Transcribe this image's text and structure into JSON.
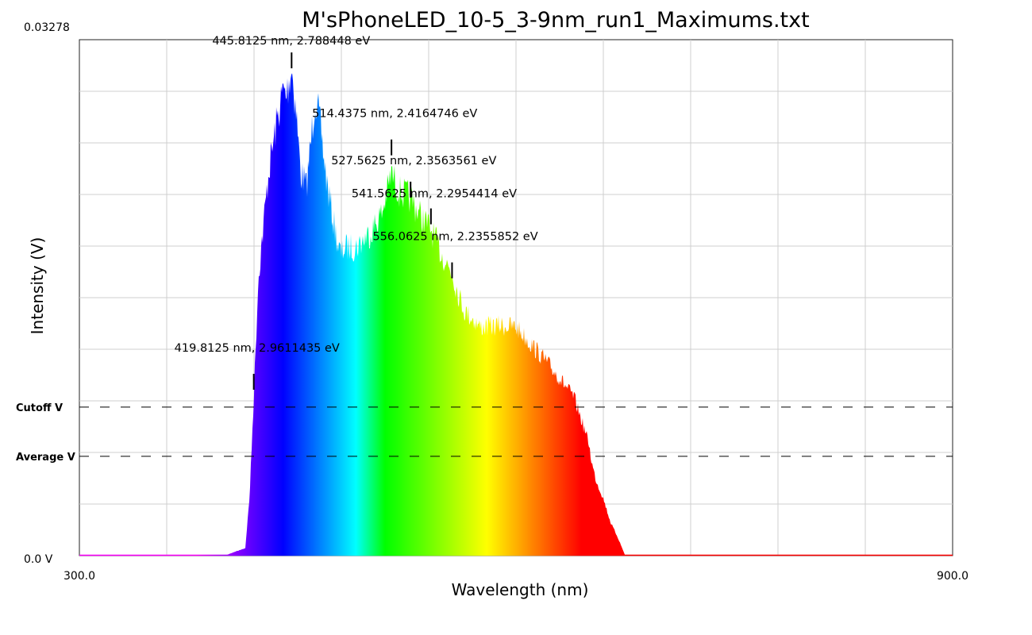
{
  "chart_data": {
    "type": "area",
    "title": "M'sPhoneLED_10-5_3-9nm_run1_Maximums.txt",
    "xlabel": "Wavelength (nm)",
    "ylabel": "Intensity (V)",
    "xlim": [
      300.0,
      900.0
    ],
    "ylim": [
      0.0,
      0.03278
    ],
    "x_tick_labels": {
      "min": "300.0",
      "max": "900.0"
    },
    "y_tick_labels": {
      "min": "0.0 V",
      "max": "0.03278"
    },
    "grid": true,
    "x_grid_step": 60,
    "y_grid_divisions": 9,
    "fill": "visible-spectrum gradient by wavelength",
    "series": [
      {
        "x": [
          300,
          400,
          414,
          417,
          419.8,
          423,
          430,
          435,
          440,
          442,
          445.8,
          449,
          452,
          456,
          459,
          462,
          465,
          470,
          474,
          478,
          480,
          482,
          490,
          500,
          508,
          514.4,
          520,
          527.6,
          535,
          541.6,
          548,
          556.1,
          560,
          565,
          570,
          575,
          590,
          600,
          620,
          630,
          640,
          645,
          650,
          652,
          655,
          660,
          665,
          670,
          675,
          900
        ],
        "y": [
          0.0,
          0.0,
          0.0005,
          0.004,
          0.0105,
          0.0185,
          0.0255,
          0.0285,
          0.031,
          0.0305,
          0.0325,
          0.0295,
          0.0255,
          0.0245,
          0.0275,
          0.0305,
          0.029,
          0.0248,
          0.0225,
          0.0205,
          0.02,
          0.0205,
          0.0205,
          0.0215,
          0.0228,
          0.0254,
          0.0242,
          0.0238,
          0.0225,
          0.0217,
          0.0202,
          0.0188,
          0.0175,
          0.0162,
          0.0158,
          0.0152,
          0.0153,
          0.0152,
          0.013,
          0.0118,
          0.0105,
          0.009,
          0.0075,
          0.0062,
          0.005,
          0.0038,
          0.0022,
          0.0012,
          0.0,
          0.0
        ]
      }
    ],
    "reference_lines": [
      {
        "label": "Cutoff V",
        "value": 0.00944
      },
      {
        "label": "Average V",
        "value": 0.00631
      }
    ],
    "peaks": [
      {
        "x": 419.8125,
        "y": 0.01155,
        "label": "419.8125 nm, 2.9611435 eV"
      },
      {
        "x": 445.8125,
        "y": 0.03197,
        "label": "445.8125 nm, 2.788448 eV"
      },
      {
        "x": 514.4375,
        "y": 0.02644,
        "label": "514.4375 nm, 2.4164746 eV"
      },
      {
        "x": 527.5625,
        "y": 0.02376,
        "label": "527.5625 nm, 2.3563561 eV"
      },
      {
        "x": 541.5625,
        "y": 0.02206,
        "label": "541.5625 nm, 2.2954414 eV"
      },
      {
        "x": 556.0625,
        "y": 0.01863,
        "label": "556.0625 nm, 2.2355852 eV"
      }
    ]
  }
}
